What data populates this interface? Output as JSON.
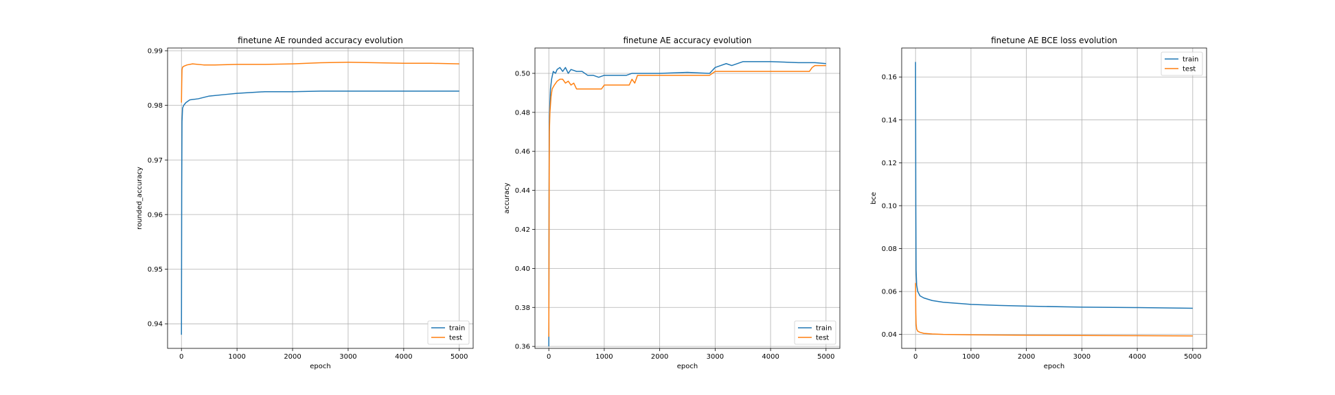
{
  "colors": {
    "train": "#1f77b4",
    "test": "#ff7f0e",
    "grid": "#b0b0b0"
  },
  "chart_data": [
    {
      "type": "line",
      "title": "finetune AE rounded accuracy evolution",
      "xlabel": "epoch",
      "ylabel": "rounded_accuracy",
      "xlim": [
        -250,
        5250
      ],
      "ylim": [
        0.9355,
        0.9905
      ],
      "xticks": [
        0,
        1000,
        2000,
        3000,
        4000,
        5000
      ],
      "yticks": [
        0.94,
        0.95,
        0.96,
        0.97,
        0.98,
        0.99
      ],
      "ytick_labels": [
        "0.94",
        "0.95",
        "0.96",
        "0.97",
        "0.98",
        "0.99"
      ],
      "grid": true,
      "legend": "lower-right",
      "series": [
        {
          "name": "train",
          "x": [
            0,
            5,
            10,
            20,
            40,
            80,
            150,
            300,
            500,
            800,
            1000,
            1500,
            2000,
            2500,
            3000,
            3500,
            4000,
            4500,
            5000
          ],
          "values": [
            0.938,
            0.965,
            0.977,
            0.9795,
            0.98,
            0.9805,
            0.981,
            0.9812,
            0.9817,
            0.982,
            0.9822,
            0.9825,
            0.9825,
            0.9826,
            0.9826,
            0.9826,
            0.9826,
            0.9826,
            0.9826
          ]
        },
        {
          "name": "test",
          "x": [
            0,
            5,
            10,
            20,
            50,
            100,
            200,
            400,
            600,
            1000,
            1500,
            2000,
            2500,
            3000,
            3500,
            4000,
            4500,
            5000
          ],
          "values": [
            0.9805,
            0.984,
            0.9865,
            0.987,
            0.9872,
            0.9874,
            0.9876,
            0.9874,
            0.9874,
            0.9875,
            0.9875,
            0.9876,
            0.9878,
            0.9879,
            0.9878,
            0.9877,
            0.9877,
            0.9876
          ]
        }
      ]
    },
    {
      "type": "line",
      "title": "finetune AE accuracy evolution",
      "xlabel": "epoch",
      "ylabel": "accuracy",
      "xlim": [
        -250,
        5250
      ],
      "ylim": [
        0.359,
        0.513
      ],
      "xticks": [
        0,
        1000,
        2000,
        3000,
        4000,
        5000
      ],
      "yticks": [
        0.36,
        0.38,
        0.4,
        0.42,
        0.44,
        0.46,
        0.48,
        0.5
      ],
      "ytick_labels": [
        "0.36",
        "0.38",
        "0.40",
        "0.42",
        "0.44",
        "0.46",
        "0.48",
        "0.50"
      ],
      "grid": true,
      "legend": "lower-right",
      "series": [
        {
          "name": "train",
          "x": [
            0,
            5,
            10,
            20,
            30,
            50,
            80,
            120,
            150,
            200,
            250,
            300,
            350,
            400,
            500,
            600,
            700,
            800,
            900,
            1000,
            1200,
            1400,
            1500,
            1800,
            2000,
            2500,
            2900,
            3000,
            3100,
            3200,
            3300,
            3500,
            3800,
            4000,
            4500,
            4800,
            5000
          ],
          "values": [
            0.36,
            0.44,
            0.475,
            0.485,
            0.492,
            0.497,
            0.501,
            0.5,
            0.502,
            0.503,
            0.501,
            0.503,
            0.5,
            0.502,
            0.501,
            0.501,
            0.499,
            0.499,
            0.498,
            0.499,
            0.499,
            0.499,
            0.5,
            0.5,
            0.5,
            0.5005,
            0.5,
            0.503,
            0.504,
            0.505,
            0.504,
            0.506,
            0.506,
            0.506,
            0.5055,
            0.5055,
            0.505
          ]
        },
        {
          "name": "test",
          "x": [
            0,
            5,
            10,
            20,
            40,
            60,
            80,
            100,
            150,
            200,
            250,
            300,
            350,
            400,
            450,
            500,
            550,
            600,
            950,
            1000,
            1450,
            1500,
            1550,
            1600,
            2900,
            2950,
            3000,
            4700,
            4750,
            4800,
            5000
          ],
          "values": [
            0.365,
            0.43,
            0.47,
            0.48,
            0.488,
            0.492,
            0.493,
            0.494,
            0.496,
            0.497,
            0.497,
            0.495,
            0.496,
            0.494,
            0.495,
            0.492,
            0.492,
            0.492,
            0.492,
            0.494,
            0.494,
            0.497,
            0.495,
            0.499,
            0.499,
            0.5,
            0.501,
            0.501,
            0.503,
            0.504,
            0.504
          ]
        }
      ]
    },
    {
      "type": "line",
      "title": "finetune AE BCE loss evolution",
      "xlabel": "epoch",
      "ylabel": "bce",
      "xlim": [
        -250,
        5250
      ],
      "ylim": [
        0.0335,
        0.1735
      ],
      "xticks": [
        0,
        1000,
        2000,
        3000,
        4000,
        5000
      ],
      "yticks": [
        0.04,
        0.06,
        0.08,
        0.1,
        0.12,
        0.14,
        0.16
      ],
      "ytick_labels": [
        "0.04",
        "0.06",
        "0.08",
        "0.10",
        "0.12",
        "0.14",
        "0.16"
      ],
      "grid": true,
      "legend": "upper-right",
      "series": [
        {
          "name": "train",
          "x": [
            0,
            5,
            10,
            20,
            40,
            80,
            150,
            300,
            500,
            1000,
            1500,
            2000,
            3000,
            4000,
            5000
          ],
          "values": [
            0.167,
            0.1,
            0.07,
            0.063,
            0.06,
            0.058,
            0.057,
            0.0558,
            0.055,
            0.054,
            0.0535,
            0.0532,
            0.0527,
            0.0525,
            0.0522
          ]
        },
        {
          "name": "test",
          "x": [
            0,
            5,
            10,
            20,
            40,
            80,
            150,
            300,
            500,
            1000,
            2000,
            3000,
            4000,
            5000
          ],
          "values": [
            0.064,
            0.05,
            0.045,
            0.0425,
            0.0415,
            0.041,
            0.0405,
            0.0402,
            0.04,
            0.0398,
            0.0396,
            0.0395,
            0.0394,
            0.0393
          ]
        }
      ]
    }
  ]
}
